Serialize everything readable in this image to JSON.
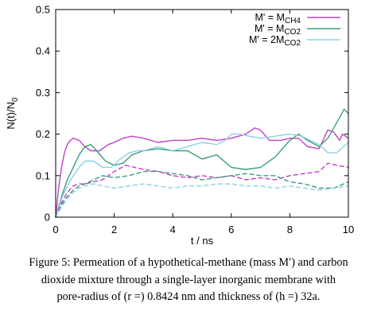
{
  "chart_data": {
    "type": "line",
    "title": "",
    "xlabel": "t / ns",
    "ylabel": "N(t)/N0",
    "xlim": [
      0,
      10
    ],
    "ylim": [
      0,
      0.5
    ],
    "xticks": [
      "0",
      "2",
      "4",
      "6",
      "8",
      "10"
    ],
    "yticks": [
      "0",
      "0.1",
      "0.2",
      "0.3",
      "0.4",
      "0.5"
    ],
    "grid": false,
    "legend_position": "top-right",
    "series": [
      {
        "name": "M' = M_CH4",
        "name_main": "M' = M",
        "name_sub": "CH4",
        "color": "#c040c8",
        "dash": "solid",
        "x": [
          0,
          0.1,
          0.2,
          0.3,
          0.4,
          0.5,
          0.6,
          0.8,
          1.0,
          1.2,
          1.5,
          1.8,
          2.0,
          2.3,
          2.6,
          3.0,
          3.5,
          4.0,
          4.5,
          5.0,
          5.5,
          6.0,
          6.5,
          6.8,
          7.0,
          7.3,
          7.7,
          8.0,
          8.3,
          8.6,
          9.0,
          9.3,
          9.5,
          9.7,
          9.8,
          9.9,
          10.0
        ],
        "y": [
          0,
          0.07,
          0.12,
          0.155,
          0.175,
          0.185,
          0.19,
          0.185,
          0.17,
          0.16,
          0.16,
          0.175,
          0.18,
          0.19,
          0.195,
          0.19,
          0.18,
          0.185,
          0.185,
          0.19,
          0.185,
          0.19,
          0.2,
          0.215,
          0.21,
          0.185,
          0.185,
          0.19,
          0.19,
          0.17,
          0.165,
          0.21,
          0.205,
          0.185,
          0.2,
          0.195,
          0.19
        ]
      },
      {
        "name": "M' = M_CO2",
        "name_main": "M' = M",
        "name_sub": "CO2",
        "color": "#3a9e7a",
        "dash": "solid",
        "x": [
          0,
          0.2,
          0.4,
          0.6,
          0.8,
          1.0,
          1.2,
          1.4,
          1.7,
          2.0,
          2.3,
          2.6,
          3.0,
          3.5,
          4.0,
          4.5,
          5.0,
          5.5,
          6.0,
          6.5,
          7.0,
          7.5,
          8.0,
          8.3,
          8.6,
          9.0,
          9.3,
          9.5,
          9.7,
          9.85,
          10.0
        ],
        "y": [
          0,
          0.05,
          0.09,
          0.12,
          0.15,
          0.17,
          0.175,
          0.16,
          0.135,
          0.125,
          0.13,
          0.15,
          0.16,
          0.165,
          0.16,
          0.16,
          0.14,
          0.15,
          0.12,
          0.115,
          0.12,
          0.145,
          0.185,
          0.2,
          0.185,
          0.17,
          0.19,
          0.215,
          0.24,
          0.26,
          0.25
        ]
      },
      {
        "name": "M' = 2M_CO2",
        "name_main": "M' = 2M",
        "name_sub": "CO2",
        "color": "#8ccfe8",
        "dash": "solid",
        "x": [
          0,
          0.2,
          0.4,
          0.6,
          0.8,
          1.0,
          1.3,
          1.6,
          1.9,
          2.2,
          2.5,
          2.8,
          3.0,
          3.5,
          4.0,
          4.5,
          5.0,
          5.5,
          5.8,
          6.0,
          6.3,
          6.6,
          7.0,
          7.5,
          8.0,
          8.4,
          8.7,
          9.0,
          9.3,
          9.6,
          10.0
        ],
        "y": [
          0,
          0.045,
          0.075,
          0.1,
          0.12,
          0.135,
          0.135,
          0.12,
          0.12,
          0.14,
          0.155,
          0.16,
          0.16,
          0.17,
          0.16,
          0.17,
          0.18,
          0.175,
          0.185,
          0.2,
          0.2,
          0.195,
          0.19,
          0.195,
          0.2,
          0.195,
          0.185,
          0.175,
          0.155,
          0.155,
          0.18
        ]
      },
      {
        "name": "",
        "color": "#c040c8",
        "dash": "dashed",
        "x": [
          0,
          0.2,
          0.4,
          0.6,
          0.8,
          1.0,
          1.3,
          1.6,
          2.0,
          2.4,
          2.7,
          3.0,
          3.5,
          4.0,
          4.5,
          5.0,
          5.5,
          6.0,
          6.5,
          7.0,
          7.5,
          8.0,
          8.5,
          9.0,
          9.3,
          9.6,
          10.0
        ],
        "y": [
          0,
          0.035,
          0.06,
          0.075,
          0.08,
          0.08,
          0.085,
          0.09,
          0.11,
          0.125,
          0.12,
          0.115,
          0.11,
          0.1,
          0.095,
          0.1,
          0.095,
          0.1,
          0.09,
          0.095,
          0.09,
          0.1,
          0.105,
          0.11,
          0.13,
          0.125,
          0.12
        ]
      },
      {
        "name": "",
        "color": "#3a9e7a",
        "dash": "dashed",
        "x": [
          0,
          0.2,
          0.4,
          0.6,
          0.8,
          1.0,
          1.3,
          1.6,
          2.0,
          2.5,
          3.0,
          3.5,
          4.0,
          4.5,
          5.0,
          5.5,
          6.0,
          6.5,
          7.0,
          7.5,
          8.0,
          8.5,
          9.0,
          9.5,
          10.0
        ],
        "y": [
          0,
          0.03,
          0.05,
          0.065,
          0.075,
          0.08,
          0.09,
          0.1,
          0.095,
          0.1,
          0.11,
          0.11,
          0.105,
          0.1,
          0.09,
          0.095,
          0.1,
          0.105,
          0.1,
          0.1,
          0.085,
          0.08,
          0.07,
          0.07,
          0.085
        ]
      },
      {
        "name": "",
        "color": "#8ccfe8",
        "dash": "dashed",
        "x": [
          0,
          0.2,
          0.4,
          0.6,
          0.8,
          1.0,
          1.3,
          1.6,
          2.0,
          2.5,
          3.0,
          3.5,
          4.0,
          4.5,
          5.0,
          5.5,
          6.0,
          6.5,
          7.0,
          7.5,
          8.0,
          8.5,
          9.0,
          9.5,
          10.0
        ],
        "y": [
          0,
          0.025,
          0.045,
          0.06,
          0.07,
          0.075,
          0.08,
          0.075,
          0.07,
          0.075,
          0.08,
          0.075,
          0.07,
          0.075,
          0.075,
          0.08,
          0.08,
          0.075,
          0.075,
          0.07,
          0.075,
          0.07,
          0.065,
          0.07,
          0.075
        ]
      }
    ]
  },
  "caption": {
    "line1": "Figure 5: Permeation of a hypothetical-methane (mass M′) and carbon",
    "line2": "dioxide mixture through a single-layer inorganic membrane with",
    "line3": "pore-radius of (r =) 0.8424 nm and thickness of (h =) 32a."
  }
}
